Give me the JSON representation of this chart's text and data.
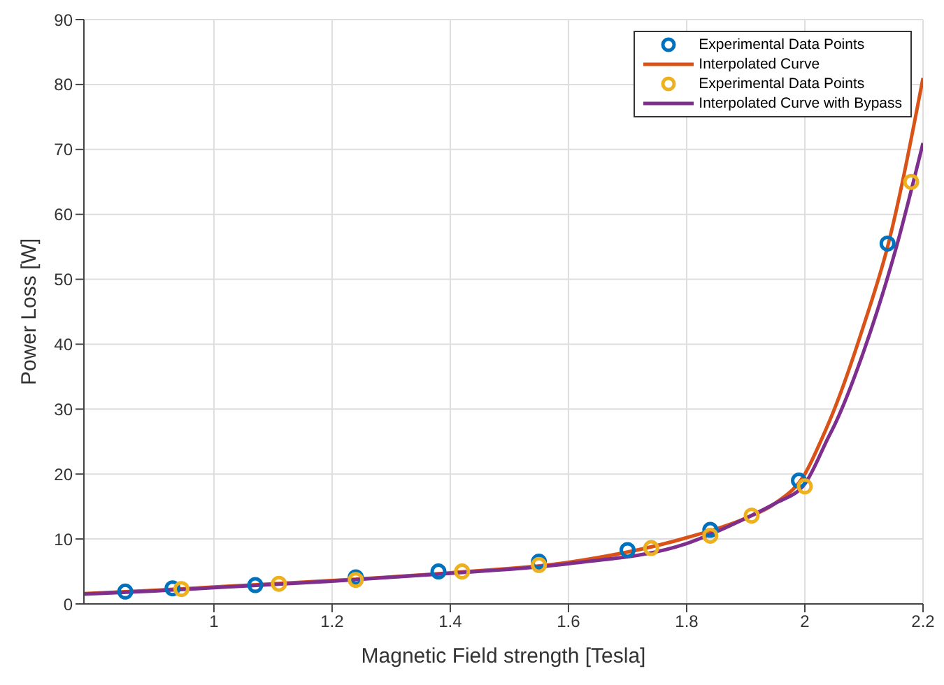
{
  "chart_data": {
    "type": "line",
    "xlabel": "Magnetic Field strength [Tesla]",
    "ylabel": "Power Loss [W]",
    "xlim": [
      0.78,
      2.2
    ],
    "xticks": [
      1,
      1.2,
      1.4,
      1.6,
      1.8,
      2,
      2.2
    ],
    "ylim": [
      0,
      90
    ],
    "yticks": [
      0,
      10,
      20,
      30,
      40,
      50,
      60,
      70,
      80,
      90
    ],
    "grid": true,
    "legend": "top right",
    "series": [
      {
        "name": "Experimental Data Points",
        "type": "scatter",
        "marker": "circle",
        "color": "#0072bd",
        "x": [
          0.85,
          0.93,
          1.07,
          1.24,
          1.38,
          1.55,
          1.7,
          1.84,
          1.99,
          2.14
        ],
        "values": [
          1.9,
          2.4,
          2.9,
          4.1,
          5.0,
          6.5,
          8.3,
          11.4,
          19.0,
          55.5
        ]
      },
      {
        "name": "Interpolated Curve",
        "marker": "none",
        "color": "#d95319",
        "x": [
          0.78,
          0.9,
          1.0,
          1.2,
          1.4,
          1.6,
          1.8,
          1.9,
          1.95,
          2.0,
          2.03,
          2.05,
          2.1,
          2.14,
          2.2
        ],
        "values": [
          1.6,
          2.1,
          2.6,
          3.6,
          4.8,
          6.4,
          10.2,
          13.2,
          15.5,
          20,
          25.7,
          30,
          43,
          55,
          81
        ]
      },
      {
        "name": "Experimental Data Points",
        "type": "scatter",
        "marker": "circle",
        "color": "#edb120",
        "x": [
          0.945,
          1.11,
          1.24,
          1.42,
          1.55,
          1.74,
          1.84,
          1.91,
          2.0,
          2.18
        ],
        "values": [
          2.3,
          3.1,
          3.7,
          5.0,
          6.0,
          8.6,
          10.5,
          13.6,
          18.1,
          65
        ]
      },
      {
        "name": "Interpolated Curve with Bypass",
        "marker": "none",
        "color": "#7e2f8e",
        "x": [
          0.78,
          0.9,
          1.0,
          1.2,
          1.4,
          1.6,
          1.8,
          1.9,
          1.95,
          2.0,
          2.04,
          2.05,
          2.1,
          2.155,
          2.2
        ],
        "values": [
          1.5,
          2.0,
          2.5,
          3.5,
          4.7,
          6.2,
          9.3,
          13.2,
          15.5,
          18.5,
          25.7,
          27.5,
          39,
          55,
          71
        ]
      }
    ]
  }
}
